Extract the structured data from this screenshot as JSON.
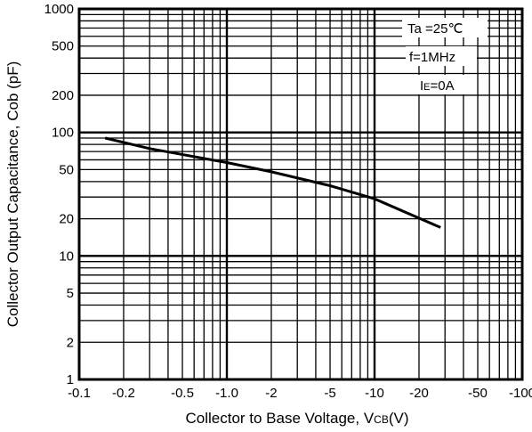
{
  "chart_data": {
    "type": "line",
    "title": "",
    "xlabel": "Collector to Base Voltage, VCB(V)",
    "xlabel_main": "Collector to Base Voltage, V",
    "xlabel_sub": "CB",
    "xlabel_unit": "(V)",
    "ylabel": "Collector Output Capacitance, Cob (pF)",
    "x_scale": "log",
    "y_scale": "log",
    "x_axis_direction": "negative values, magnitude increasing to the right",
    "xlim": [
      -0.1,
      -100
    ],
    "ylim": [
      1,
      1000
    ],
    "grid": true,
    "x_ticks": [
      "-0.1",
      "-0.2",
      "-0.5",
      "-1.0",
      "-2",
      "-5",
      "-10",
      "-20",
      "-50",
      "-100"
    ],
    "y_ticks": [
      "1000",
      "500",
      "200",
      "100",
      "50",
      "20",
      "10",
      "5",
      "2",
      "1"
    ],
    "annotations": {
      "temperature": "Ta =25℃",
      "frequency": "f=1MHz",
      "emitter_current_main": "I",
      "emitter_current_sub": "E",
      "emitter_current_rest": "=0A"
    },
    "series": [
      {
        "x": [
          -0.15,
          -0.3,
          -1.0,
          -2.0,
          -5.0,
          -10.0,
          -28.0
        ],
        "y": [
          90,
          74,
          57,
          48,
          37,
          29,
          17
        ]
      }
    ]
  }
}
